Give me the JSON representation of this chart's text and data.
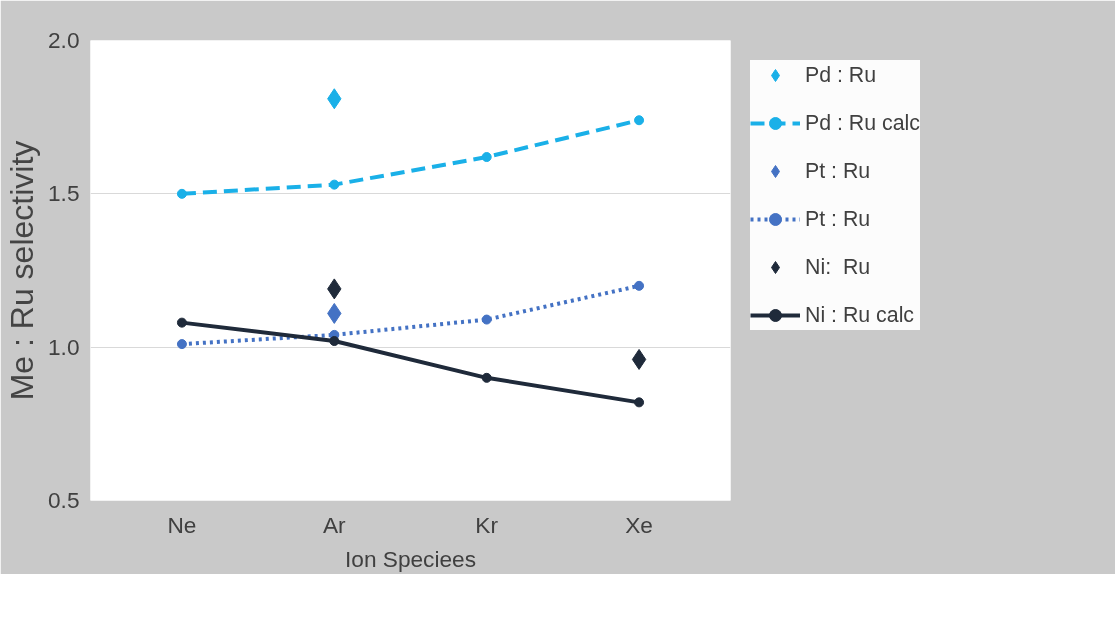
{
  "chart_data": {
    "type": "line",
    "xlabel": "Ion Speciees",
    "ylabel": "Me : Ru selectivity",
    "categories": [
      "Ne",
      "Ar",
      "Kr",
      "Xe"
    ],
    "ylim": [
      0.5,
      2.0
    ],
    "yticks": [
      {
        "value": 0.5,
        "label": "0.5"
      },
      {
        "value": 1.0,
        "label": "1.0"
      },
      {
        "value": 1.5,
        "label": "1.5"
      },
      {
        "value": 2.0,
        "label": "2.0"
      }
    ],
    "grid": "y",
    "legend": "right",
    "series": [
      {
        "name": "Pd : Ru",
        "type": "scatter",
        "marker": "diamond",
        "color": "#1ab0e8",
        "values": [
          null,
          1.81,
          null,
          null
        ]
      },
      {
        "name": "Pd : Ru calc",
        "marker": "circle",
        "line_style": "dashed",
        "color": "#1ab0e8",
        "values": [
          1.5,
          1.53,
          1.62,
          1.74
        ]
      },
      {
        "name": "Pt : Ru",
        "type": "scatter",
        "marker": "diamond",
        "color": "#4472c4",
        "values": [
          null,
          1.11,
          null,
          null
        ]
      },
      {
        "name": "Pt : Ru",
        "marker": "circle",
        "line_style": "dotted",
        "color": "#4472c4",
        "values": [
          1.01,
          1.04,
          1.09,
          1.2
        ]
      },
      {
        "name": "Ni:  Ru",
        "type": "scatter",
        "marker": "diamond",
        "color": "#1f2a3a",
        "values": [
          null,
          1.19,
          null,
          0.96
        ]
      },
      {
        "name": "Ni : Ru calc",
        "marker": "circle",
        "line_style": "solid",
        "color": "#1f2a3a",
        "values": [
          1.08,
          1.02,
          0.9,
          0.82
        ]
      }
    ]
  }
}
